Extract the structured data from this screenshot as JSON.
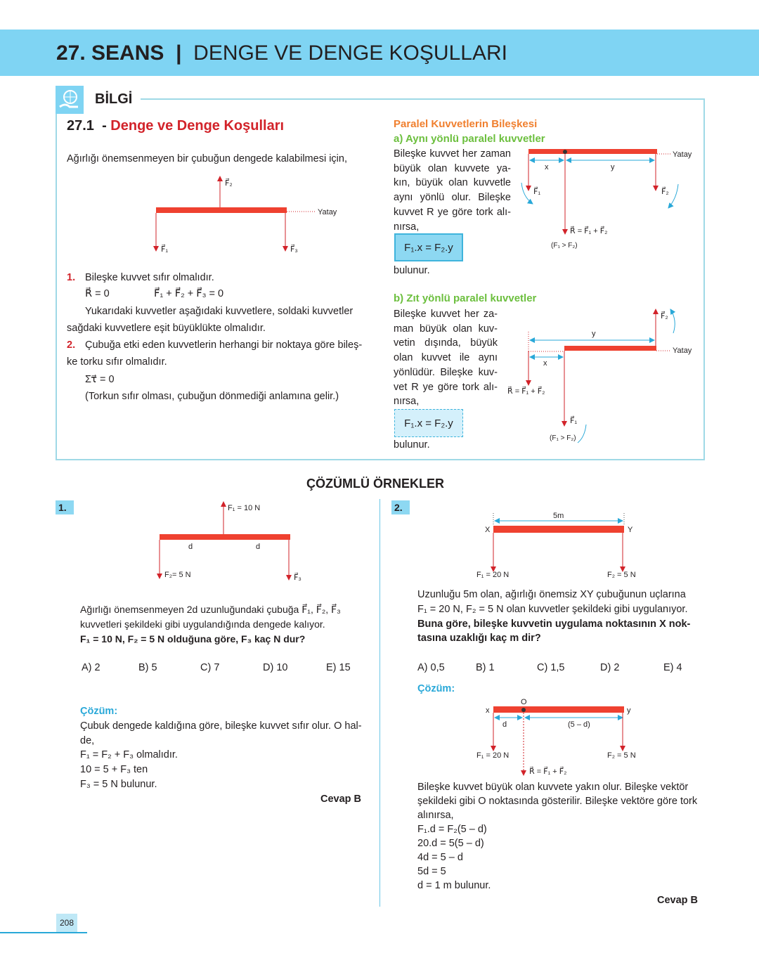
{
  "header": {
    "number": "27. SEANS",
    "separator": "|",
    "title": "DENGE VE DENGE KOŞULLARI"
  },
  "info": {
    "label": "BİLGİ",
    "section_number": "27.1",
    "section_dash": "-",
    "section_title": "Denge ve Denge Koşulları",
    "intro": "Ağırlığı önemsenmeyen bir çubuğun dengede kalabilmesi için,",
    "diagram": {
      "f1": "F⃗₁",
      "f2": "F⃗₂",
      "f3": "F⃗₃",
      "horizontal": "Yatay"
    },
    "items": [
      {
        "num": "1.",
        "text": "Bileşke kuvvet sıfır olmalıdır."
      },
      {
        "text": "R⃗ = 0"
      },
      {
        "text": "F⃗₁ + F⃗₂ + F⃗₃ = 0"
      },
      {
        "text": "Yukarıdaki kuvvetler aşağıdaki kuvvetlere, soldaki kuvvetler"
      },
      {
        "text": "sağdaki kuvvetlere eşit büyüklükte olmalıdır."
      },
      {
        "num": "2.",
        "text": "Çubuğa etki eden kuvvetlerin herhangi bir noktaya göre bileş-"
      },
      {
        "text": "ke torku sıfır olmalıdır."
      },
      {
        "text": "Στ⃗ = 0"
      },
      {
        "text": "(Torkun sıfır olması, çubuğun dönmediği anlamına gelir.)"
      }
    ]
  },
  "parallel": {
    "title": "Paralel Kuvvetlerin Bileşkesi",
    "a": {
      "title": "a) Aynı yönlü paralel kuvvetler",
      "lines": [
        "Bileşke kuvvet her zaman",
        "büyük olan kuvvete ya-",
        "kın, büyük olan kuvvetle",
        "aynı yönlü olur. Bileşke",
        "kuvvet R ye göre tork alı-",
        "nırsa,"
      ],
      "formula": "F₁.x = F₂.y",
      "after": "bulunur.",
      "diagram": {
        "x": "x",
        "y": "y",
        "f1": "F⃗₁",
        "f2": "F⃗₂",
        "r": "R⃗ = F⃗₁ + F⃗₂",
        "cond": "(F₁ > F₂)",
        "horizontal": "Yatay"
      }
    },
    "b": {
      "title": "b) Zıt yönlü paralel kuvvetler",
      "lines": [
        "Bileşke kuvvet her za-",
        "man büyük olan kuv-",
        "vetin dışında, büyük",
        "olan kuvvet ile aynı",
        "yönlüdür. Bileşke kuv-",
        "vet R ye göre tork alı-",
        "nırsa,"
      ],
      "formula": "F₁.x = F₂.y",
      "after": "bulunur.",
      "diagram": {
        "x": "x",
        "y": "y",
        "f1": "F⃗₁",
        "f2": "F⃗₂",
        "r": "R⃗ = F⃗₁ + F⃗₂",
        "cond": "(F₁ > F₂)",
        "horizontal": "Yatay"
      }
    }
  },
  "examples_title": "ÇÖZÜMLÜ ÖRNEKLER",
  "ex1": {
    "num": "1.",
    "diagram": {
      "f1": "F₁ = 10 N",
      "f2": "F₂= 5 N",
      "f3": "F⃗₃",
      "d1": "d",
      "d2": "d"
    },
    "question": [
      "Ağırlığı önemsenmeyen 2d uzunluğundaki çubuğa F⃗₁, F⃗₂, F⃗₃",
      "kuvvetleri şekildeki gibi uygulandığında dengede kalıyor."
    ],
    "question_bold": "F₁ = 10 N, F₂ = 5 N olduğuna göre, F₃ kaç N dur?",
    "options": [
      "A) 2",
      "B) 5",
      "C) 7",
      "D) 10",
      "E) 15"
    ],
    "solution_label": "Çözüm:",
    "solution": [
      "Çubuk dengede kaldığına göre, bileşke kuvvet sıfır olur. O hal-",
      "de,",
      "F₁ = F₂ + F₃ olmalıdır.",
      "10 = 5 + F₃ ten",
      "F₃ = 5 N bulunur."
    ],
    "answer": "Cevap B"
  },
  "ex2": {
    "num": "2.",
    "diagram": {
      "length": "5m",
      "x": "X",
      "y": "Y",
      "f1": "F₁ = 20 N",
      "f2": "F₂ = 5 N"
    },
    "question": [
      "Uzunluğu 5m olan, ağırlığı önemsiz XY çubuğunun uçlarına",
      "F₁ = 20 N, F₂ = 5 N olan kuvvetler şekildeki gibi uygulanıyor."
    ],
    "question_bold": [
      "Buna göre, bileşke kuvvetin uygulama noktasının X nok-",
      "tasına uzaklığı kaç m dir?"
    ],
    "options": [
      "A) 0,5",
      "B) 1",
      "C) 1,5",
      "D) 2",
      "E) 4"
    ],
    "solution_label": "Çözüm:",
    "solution_diagram": {
      "o": "O",
      "x": "x",
      "y": "y",
      "d": "d",
      "rest": "(5 – d)",
      "f1": "F₁ = 20 N",
      "f2": "F₂ = 5 N",
      "r": "R⃗ = F⃗₁ + F⃗₂"
    },
    "solution": [
      "Bileşke kuvvet büyük olan kuvvete yakın olur. Bileşke vektör",
      "şekildeki gibi O noktasında gösterilir. Bileşke vektöre göre tork",
      "alınırsa,",
      "F₁.d = F₂(5 – d)",
      "20.d = 5(5 – d)",
      "4d = 5 – d",
      "5d = 5",
      "d = 1 m bulunur."
    ],
    "answer": "Cevap B"
  },
  "page_number": "208",
  "colors": {
    "header": "#7fd4f3",
    "bar": "#ef4130",
    "arrow": "#d2232a",
    "accent": "#29a8d8",
    "title_red": "#d2232a",
    "orange": "#f07f2e",
    "green": "#6cbf3e"
  }
}
